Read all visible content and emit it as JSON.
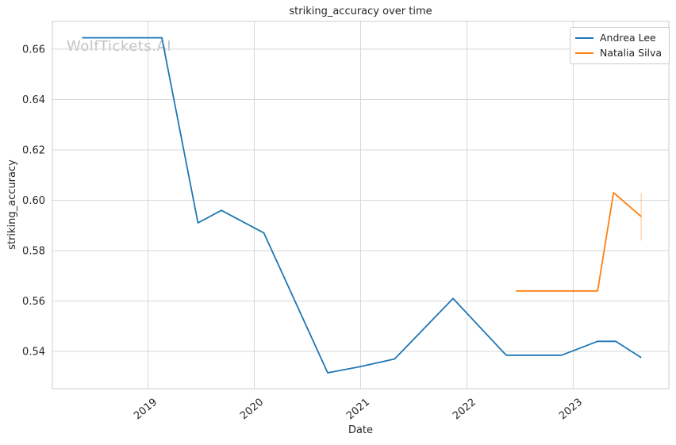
{
  "watermark": "WolfTickets.AI",
  "chart_data": {
    "type": "line",
    "title": "striking_accuracy over time",
    "xlabel": "Date",
    "ylabel": "striking_accuracy",
    "x_axis": {
      "unit": "decimal_year",
      "range": [
        2018.1,
        2023.9
      ],
      "ticks": [
        2019,
        2020,
        2021,
        2022,
        2023
      ],
      "tick_labels": [
        "2019",
        "2020",
        "2021",
        "2022",
        "2023"
      ],
      "tick_rotation_deg": 40
    },
    "y_axis": {
      "range": [
        0.5252,
        0.671
      ],
      "ticks": [
        0.54,
        0.56,
        0.58,
        0.6,
        0.62,
        0.64,
        0.66
      ],
      "tick_decimals": 2
    },
    "grid": true,
    "legend": {
      "position": "upper right"
    },
    "series": [
      {
        "name": "Andrea Lee",
        "color": "#1f77b4",
        "points": [
          [
            2018.38,
            0.6645
          ],
          [
            2019.13,
            0.6645
          ],
          [
            2019.47,
            0.591
          ],
          [
            2019.69,
            0.596
          ],
          [
            2020.09,
            0.587
          ],
          [
            2020.69,
            0.5315
          ],
          [
            2021.0,
            0.534
          ],
          [
            2021.32,
            0.537
          ],
          [
            2021.87,
            0.561
          ],
          [
            2022.37,
            0.5385
          ],
          [
            2022.89,
            0.5385
          ],
          [
            2023.23,
            0.544
          ],
          [
            2023.4,
            0.544
          ],
          [
            2023.64,
            0.5375
          ]
        ]
      },
      {
        "name": "Natalia Silva",
        "color": "#ff7f0e",
        "points": [
          [
            2022.46,
            0.564
          ],
          [
            2023.23,
            0.564
          ],
          [
            2023.38,
            0.603
          ],
          [
            2023.64,
            0.5935
          ]
        ],
        "error_bar_last": {
          "x": 2023.64,
          "low": 0.584,
          "high": 0.603
        }
      }
    ],
    "style_colors": {
      "background": "#ffffff",
      "grid": "#d7d7d7",
      "spine": "#cccccc",
      "text": "#262626",
      "watermark": "#c4c4c4"
    }
  }
}
